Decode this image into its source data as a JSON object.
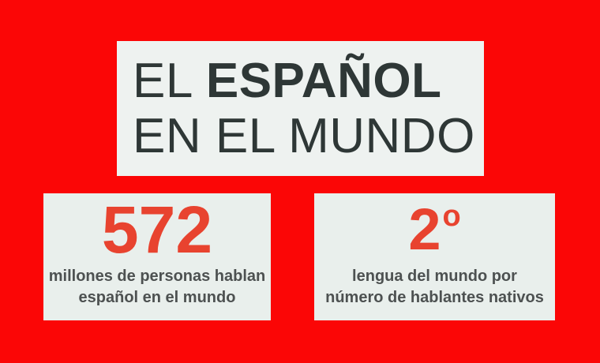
{
  "colors": {
    "background": "#fb0606",
    "title_panel": "#eef2f0",
    "stat_panel": "#e9efec",
    "title_text": "#2e3736",
    "accent_red": "#e8432f",
    "caption_text": "#4d5151"
  },
  "title": {
    "line1_light": "EL",
    "line1_bold": "ESPAÑOL",
    "line2": "EN EL MUNDO"
  },
  "stats": [
    {
      "value": "572",
      "caption_lines": [
        "millones de personas hablan",
        "español en el mundo"
      ]
    },
    {
      "value": "2",
      "ordinal": "o",
      "caption_lines": [
        "lengua del mundo por",
        "número de hablantes nativos"
      ]
    }
  ],
  "chart_data": {
    "type": "table",
    "title": "EL ESPAÑOL EN EL MUNDO",
    "stats": [
      {
        "value": 572,
        "unit": "millones",
        "label": "millones de personas hablan español en el mundo"
      },
      {
        "value": 2,
        "unit": "º (ordinal)",
        "label": "lengua del mundo por número de hablantes nativos"
      }
    ],
    "layout": {
      "background": "red",
      "panels": [
        "title",
        "stat-572",
        "stat-2nd"
      ]
    }
  }
}
